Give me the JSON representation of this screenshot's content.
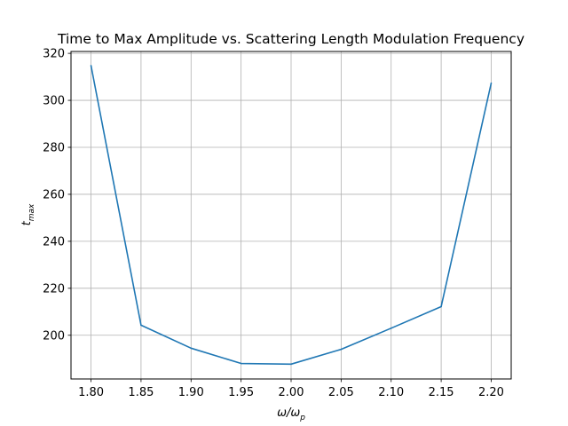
{
  "chart_data": {
    "type": "line",
    "title": "Time to Max Amplitude vs. Scattering Length Modulation Frequency",
    "xlabel": {
      "main": "ω/ω",
      "sub": "p"
    },
    "ylabel": {
      "main": "t",
      "sub": "max"
    },
    "xlim": [
      1.78,
      2.22
    ],
    "ylim": [
      181.4,
      320.8
    ],
    "grid": true,
    "line_color": "#1f77b4",
    "x_ticks": [
      1.8,
      1.85,
      1.9,
      1.95,
      2.0,
      2.05,
      2.1,
      2.15,
      2.2
    ],
    "x_tick_labels": [
      "1.80",
      "1.85",
      "1.90",
      "1.95",
      "2.00",
      "2.05",
      "2.10",
      "2.15",
      "2.20"
    ],
    "y_ticks": [
      200,
      220,
      240,
      260,
      280,
      300,
      320
    ],
    "y_tick_labels": [
      "200",
      "220",
      "240",
      "260",
      "280",
      "300",
      "320"
    ],
    "series": [
      {
        "x": [
          1.8,
          1.85,
          1.9,
          1.95,
          2.0,
          2.05,
          2.1,
          2.15,
          2.2
        ],
        "y": [
          314.8,
          204.3,
          194.5,
          188.0,
          187.7,
          194.0,
          203.0,
          212.2,
          307.3
        ]
      }
    ]
  }
}
